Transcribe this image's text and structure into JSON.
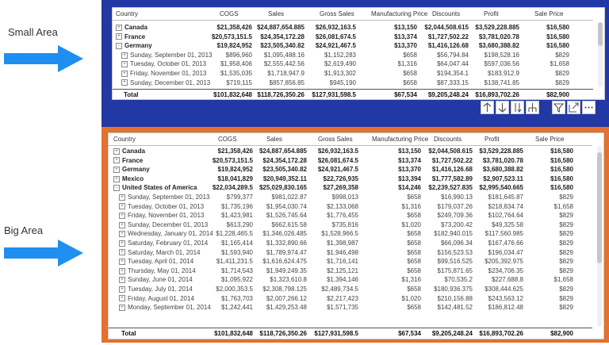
{
  "labels": {
    "small": "Small Area",
    "big": "Big Area"
  },
  "colors": {
    "small_bg": "#2238a4",
    "big_bg": "#e4712d"
  },
  "columns": [
    "Country",
    "COGS",
    "Sales",
    "Gross Sales",
    "Manufacturing Price",
    "Discounts",
    "Profit",
    "Sale Price"
  ],
  "small_table": {
    "rows": [
      {
        "expand": "plus",
        "level": 0,
        "cells": [
          "Canada",
          "$21,358,426",
          "$24,887,654.885",
          "$26,932,163.5",
          "$13,150",
          "$2,044,508.615",
          "$3,529,228.885",
          "$16,580"
        ]
      },
      {
        "expand": "plus",
        "level": 0,
        "cells": [
          "France",
          "$20,573,151.5",
          "$24,354,172.28",
          "$26,081,674.5",
          "$13,374",
          "$1,727,502.22",
          "$3,781,020.78",
          "$16,580"
        ]
      },
      {
        "expand": "minus",
        "level": 0,
        "cells": [
          "Germany",
          "$19,824,952",
          "$23,505,340.82",
          "$24,921,467.5",
          "$13,370",
          "$1,416,126.68",
          "$3,680,388.82",
          "$16,580"
        ]
      },
      {
        "expand": "plus",
        "level": 1,
        "cells": [
          "Sunday, September 01, 2013",
          "$896,960",
          "$1,095,488.16",
          "$1,152,283",
          "$658",
          "$56,794.84",
          "$198,528.16",
          "$829"
        ]
      },
      {
        "expand": "plus",
        "level": 1,
        "cells": [
          "Tuesday, October 01, 2013",
          "$1,958,406",
          "$2,555,442.56",
          "$2,619,490",
          "$1,316",
          "$64,047.44",
          "$597,036.56",
          "$1,658"
        ]
      },
      {
        "expand": "plus",
        "level": 1,
        "cells": [
          "Friday, November 01, 2013",
          "$1,535,035",
          "$1,718,947.9",
          "$1,913,302",
          "$658",
          "$194,354.1",
          "$183,912.9",
          "$829"
        ]
      },
      {
        "expand": "plus",
        "level": 1,
        "cells": [
          "Sunday, December 01, 2013",
          "$719,115",
          "$857,856.85",
          "$945,190",
          "$658",
          "$87,333.15",
          "$138,741.85",
          "$829"
        ]
      }
    ],
    "total": [
      "Total",
      "$101,832,648",
      "$118,726,350.26",
      "$127,931,598.5",
      "$67,534",
      "$9,205,248.24",
      "$16,893,702.26",
      "$82,900"
    ]
  },
  "big_table": {
    "rows": [
      {
        "expand": "plus",
        "level": 0,
        "cells": [
          "Canada",
          "$21,358,426",
          "$24,887,654.885",
          "$26,932,163.5",
          "$13,150",
          "$2,044,508.615",
          "$3,529,228.885",
          "$16,580"
        ]
      },
      {
        "expand": "plus",
        "level": 0,
        "cells": [
          "France",
          "$20,573,151.5",
          "$24,354,172.28",
          "$26,081,674.5",
          "$13,374",
          "$1,727,502.22",
          "$3,781,020.78",
          "$16,580"
        ]
      },
      {
        "expand": "plus",
        "level": 0,
        "cells": [
          "Germany",
          "$19,824,952",
          "$23,505,340.82",
          "$24,921,467.5",
          "$13,370",
          "$1,416,126.68",
          "$3,680,388.82",
          "$16,580"
        ]
      },
      {
        "expand": "plus",
        "level": 0,
        "cells": [
          "Mexico",
          "$18,041,829",
          "$20,949,352.11",
          "$22,726,935",
          "$13,394",
          "$1,777,582.89",
          "$2,907,523.11",
          "$16,580"
        ]
      },
      {
        "expand": "minus",
        "level": 0,
        "cells": [
          "United States of America",
          "$22,034,289.5",
          "$25,029,830.165",
          "$27,269,358",
          "$14,246",
          "$2,239,527.835",
          "$2,995,540.665",
          "$16,580"
        ]
      },
      {
        "expand": "plus",
        "level": 1,
        "cells": [
          "Sunday, September 01, 2013",
          "$799,377",
          "$981,022.87",
          "$998,013",
          "$658",
          "$16,990.13",
          "$181,645.87",
          "$829"
        ]
      },
      {
        "expand": "plus",
        "level": 1,
        "cells": [
          "Tuesday, October 01, 2013",
          "$1,735,196",
          "$1,954,030.74",
          "$2,133,068",
          "$1,316",
          "$179,037.26",
          "$218,834.74",
          "$1,658"
        ]
      },
      {
        "expand": "plus",
        "level": 1,
        "cells": [
          "Friday, November 01, 2013",
          "$1,423,981",
          "$1,526,745.64",
          "$1,776,455",
          "$658",
          "$249,709.36",
          "$102,764.64",
          "$829"
        ]
      },
      {
        "expand": "plus",
        "level": 1,
        "cells": [
          "Sunday, December 01, 2013",
          "$613,290",
          "$662,615.58",
          "$735,816",
          "$1,020",
          "$73,200.42",
          "$49,325.58",
          "$829"
        ]
      },
      {
        "expand": "plus",
        "level": 1,
        "cells": [
          "Wednesday, January 01, 2014",
          "$1,228,465.5",
          "$1,346,026.485",
          "$1,528,966.5",
          "$658",
          "$182,940.015",
          "$117,560.985",
          "$829"
        ]
      },
      {
        "expand": "plus",
        "level": 1,
        "cells": [
          "Saturday, February 01, 2014",
          "$1,165,414",
          "$1,332,890.66",
          "$1,398,987",
          "$658",
          "$66,096.34",
          "$167,476.66",
          "$829"
        ]
      },
      {
        "expand": "plus",
        "level": 1,
        "cells": [
          "Saturday, March 01, 2014",
          "$1,593,940",
          "$1,789,974.47",
          "$1,946,498",
          "$658",
          "$156,523.53",
          "$196,034.47",
          "$829"
        ]
      },
      {
        "expand": "plus",
        "level": 1,
        "cells": [
          "Tuesday, April 01, 2014",
          "$1,411,231.5",
          "$1,616,624.475",
          "$1,716,141",
          "$658",
          "$99,516.525",
          "$205,392.975",
          "$829"
        ]
      },
      {
        "expand": "plus",
        "level": 1,
        "cells": [
          "Thursday, May 01, 2014",
          "$1,714,543",
          "$1,949,249.35",
          "$2,125,121",
          "$658",
          "$175,871.65",
          "$234,706.35",
          "$829"
        ]
      },
      {
        "expand": "plus",
        "level": 1,
        "cells": [
          "Sunday, June 01, 2014",
          "$1,095,922",
          "$1,323,610.8",
          "$1,394,146",
          "$1,316",
          "$70,535.2",
          "$227,688.8",
          "$1,658"
        ]
      },
      {
        "expand": "plus",
        "level": 1,
        "cells": [
          "Tuesday, July 01, 2014",
          "$2,000,353.5",
          "$2,308,798.125",
          "$2,489,734.5",
          "$658",
          "$180,936.375",
          "$308,444.625",
          "$829"
        ]
      },
      {
        "expand": "plus",
        "level": 1,
        "cells": [
          "Friday, August 01, 2014",
          "$1,763,703",
          "$2,007,266.12",
          "$2,217,423",
          "$1,020",
          "$210,156.88",
          "$243,563.12",
          "$829"
        ]
      },
      {
        "expand": "plus",
        "level": 1,
        "cells": [
          "Monday, September 01, 2014",
          "$1,242,441",
          "$1,429,253.48",
          "$1,571,735",
          "$658",
          "$142,481.52",
          "$186,812.48",
          "$829"
        ]
      }
    ],
    "total": [
      "Total",
      "$101,832,648",
      "$118,726,350.26",
      "$127,931,598.5",
      "$67,534",
      "$9,205,248.24",
      "$16,893,702.26",
      "$82,900"
    ]
  },
  "toolbar": [
    "drill-up-icon",
    "drill-down-icon",
    "expand-level-icon",
    "expand-all-icon",
    "filter-icon",
    "focus-mode-icon",
    "more-options-icon"
  ]
}
